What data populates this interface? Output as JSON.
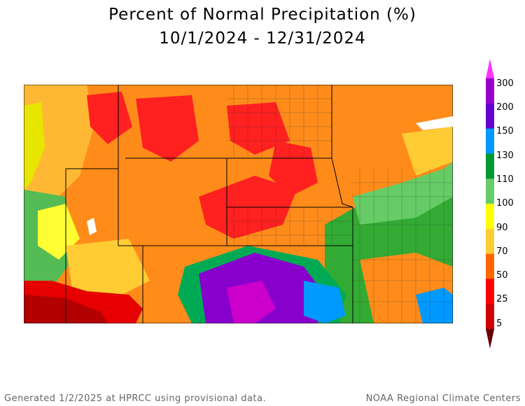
{
  "header": {
    "title": "Percent of Normal Precipitation (%)",
    "date_range": "10/1/2024 - 12/31/2024"
  },
  "legend": {
    "labels": [
      "300",
      "200",
      "150",
      "130",
      "110",
      "100",
      "90",
      "70",
      "50",
      "25",
      "5"
    ],
    "colors": [
      "#ff33ff",
      "#9900cc",
      "#6600cc",
      "#0099ff",
      "#009933",
      "#66cc66",
      "#ffff00",
      "#ffcc33",
      "#ff6600",
      "#ff0000",
      "#cc0000",
      "#660000"
    ]
  },
  "footer": {
    "generated": "Generated 1/2/2025 at HPRCC using provisional data.",
    "source": "NOAA Regional Climate Centers"
  }
}
